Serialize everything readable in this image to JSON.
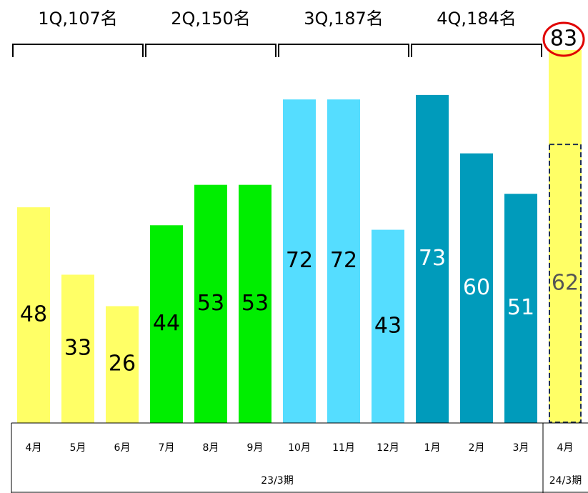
{
  "chart_data": {
    "type": "bar",
    "categories": [
      "4月",
      "5月",
      "6月",
      "7月",
      "8月",
      "9月",
      "10月",
      "11月",
      "12月",
      "1月",
      "2月",
      "3月",
      "4月"
    ],
    "values": [
      48,
      33,
      26,
      44,
      53,
      53,
      72,
      72,
      43,
      73,
      60,
      51,
      83
    ],
    "inner_values": [
      null,
      null,
      null,
      null,
      null,
      null,
      null,
      null,
      null,
      null,
      null,
      null,
      62
    ],
    "colors": [
      "#ffff66",
      "#ffff66",
      "#ffff66",
      "#00ee00",
      "#00ee00",
      "#00ee00",
      "#55ddff",
      "#55ddff",
      "#55ddff",
      "#009bbb",
      "#009bbb",
      "#009bbb",
      "#ffff66"
    ],
    "label_colors": [
      "#000",
      "#000",
      "#000",
      "#000",
      "#000",
      "#000",
      "#000",
      "#000",
      "#000",
      "#fff",
      "#fff",
      "#fff",
      "#000"
    ],
    "inner_label_color": "#555",
    "highlight_color": "#e00000",
    "quarters": [
      {
        "label": "1Q,107名",
        "start": 0,
        "end": 2
      },
      {
        "label": "2Q,150名",
        "start": 3,
        "end": 5
      },
      {
        "label": "3Q,187名",
        "start": 6,
        "end": 8
      },
      {
        "label": "4Q,184名",
        "start": 9,
        "end": 11
      }
    ],
    "periods": [
      {
        "label": "23/3期",
        "start": 0,
        "end": 11
      },
      {
        "label": "24/3期",
        "start": 12,
        "end": 12
      }
    ]
  }
}
